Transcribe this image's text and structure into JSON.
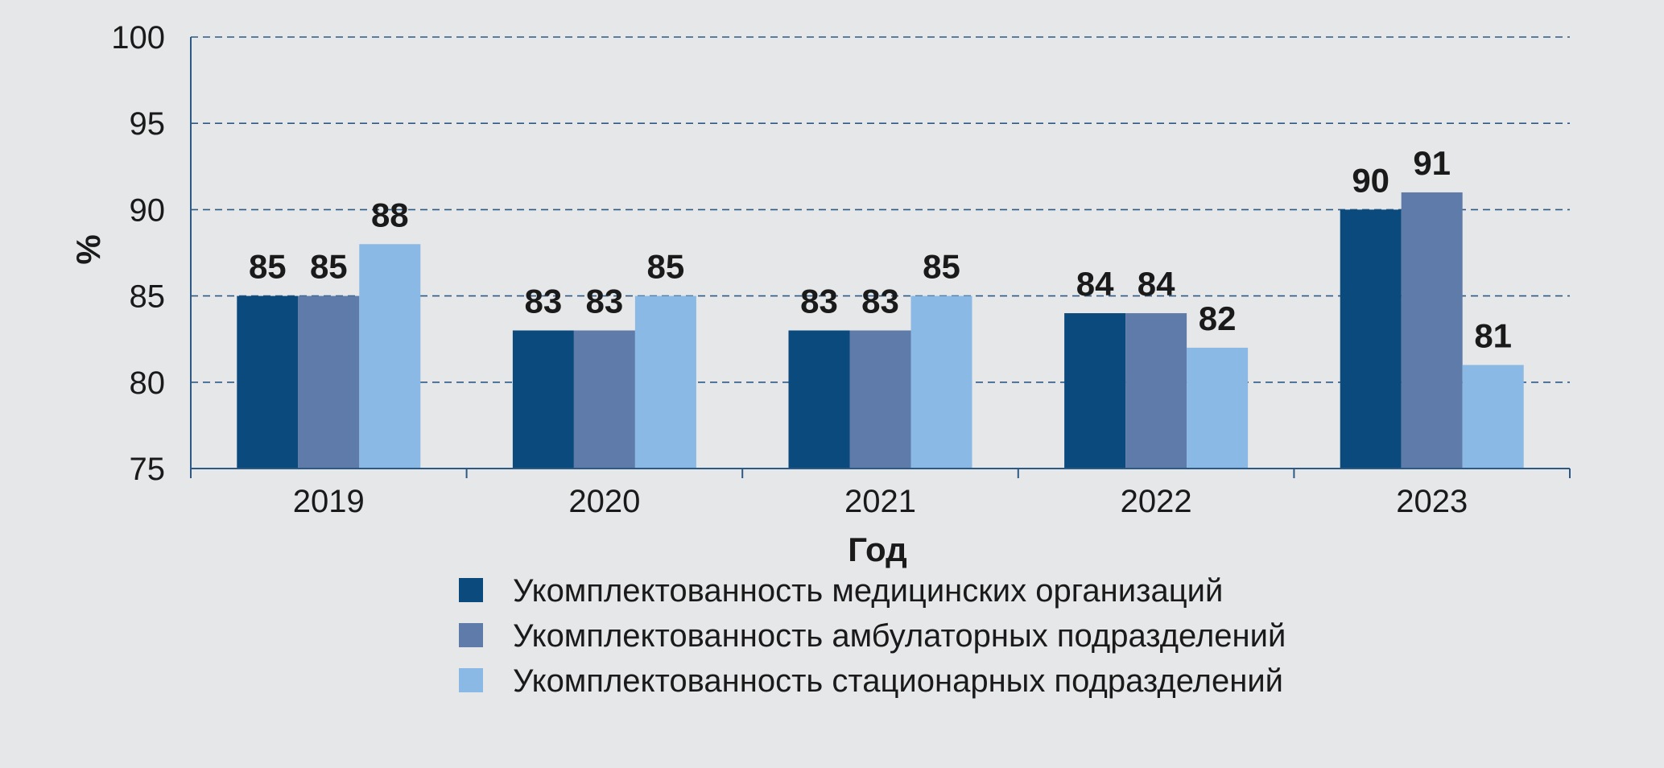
{
  "chart_data": {
    "type": "bar",
    "categories": [
      "2019",
      "2020",
      "2021",
      "2022",
      "2023"
    ],
    "series": [
      {
        "name": "Укомплектованность медицинских организаций",
        "color": "#0b4a7c",
        "values": [
          85,
          83,
          83,
          84,
          90
        ]
      },
      {
        "name": "Укомплектованность амбулаторных подразделений",
        "color": "#5f7ba9",
        "values": [
          85,
          83,
          83,
          84,
          91
        ]
      },
      {
        "name": "Укомплектованность стационарных подразделений",
        "color": "#89b9e4",
        "values": [
          88,
          85,
          85,
          82,
          81
        ]
      }
    ],
    "xlabel": "Год",
    "ylabel": "%",
    "ylim": [
      75,
      100
    ],
    "yticks": [
      "75",
      "80",
      "85",
      "90",
      "95",
      "100"
    ],
    "grid": "horizontal dashed",
    "legend_position": "bottom",
    "axis_color": "#2c5a85"
  }
}
